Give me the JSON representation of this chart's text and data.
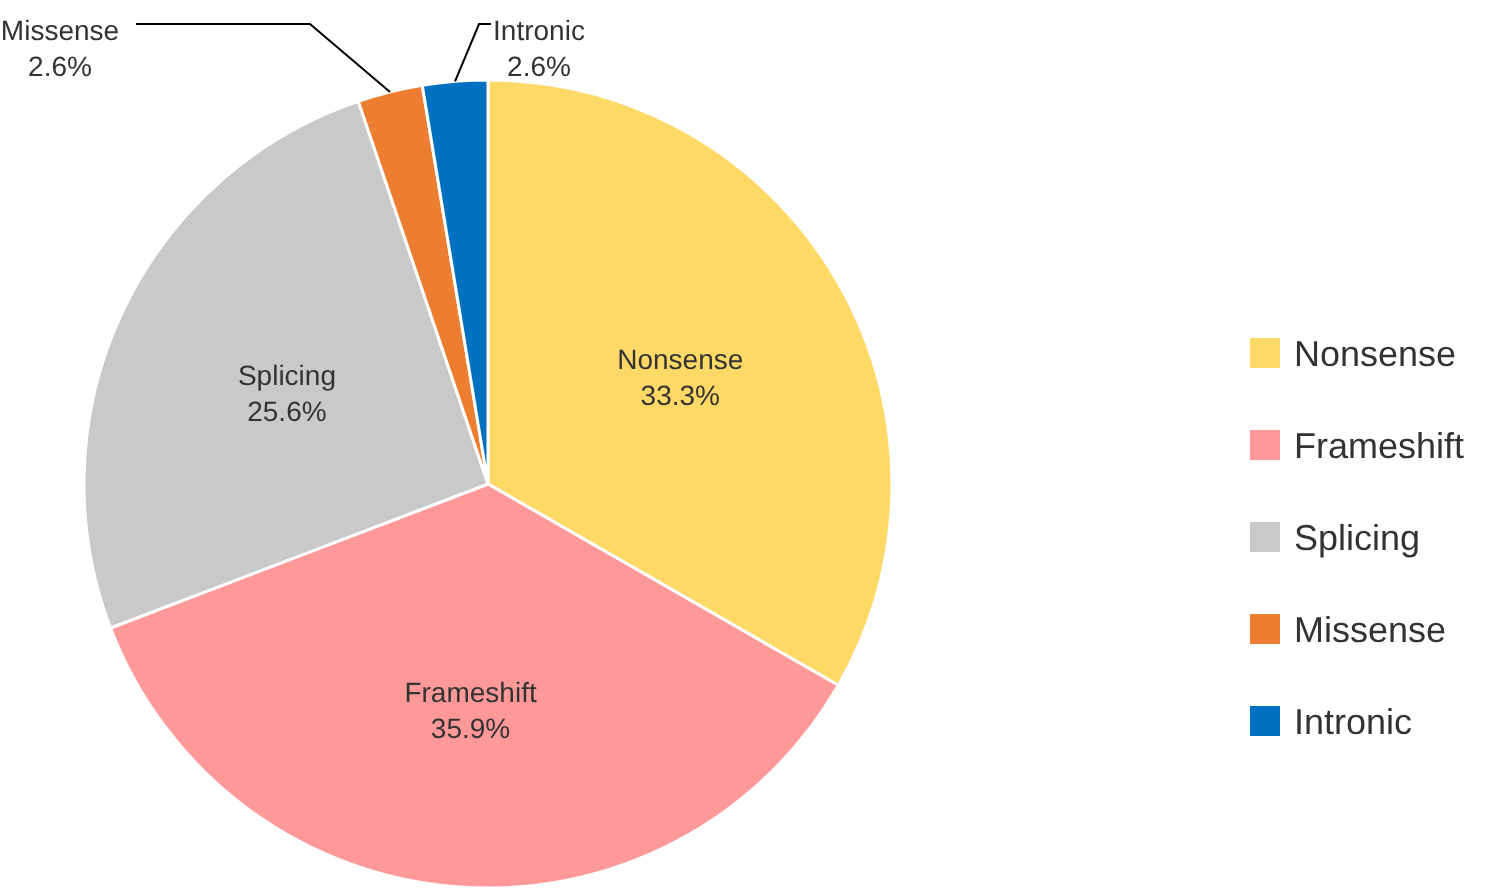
{
  "chart_data": {
    "type": "pie",
    "categories": [
      "Nonsense",
      "Frameshift",
      "Splicing",
      "Missense",
      "Intronic"
    ],
    "values": [
      33.3,
      35.9,
      25.6,
      2.6,
      2.6
    ],
    "colors": [
      "#ffd966",
      "#ff9999",
      "#c9c9c9",
      "#ed7d31",
      "#0070c0"
    ],
    "value_labels": [
      "33.3%",
      "35.9%",
      "25.6%",
      "2.6%",
      "2.6%"
    ],
    "legend": "right"
  }
}
